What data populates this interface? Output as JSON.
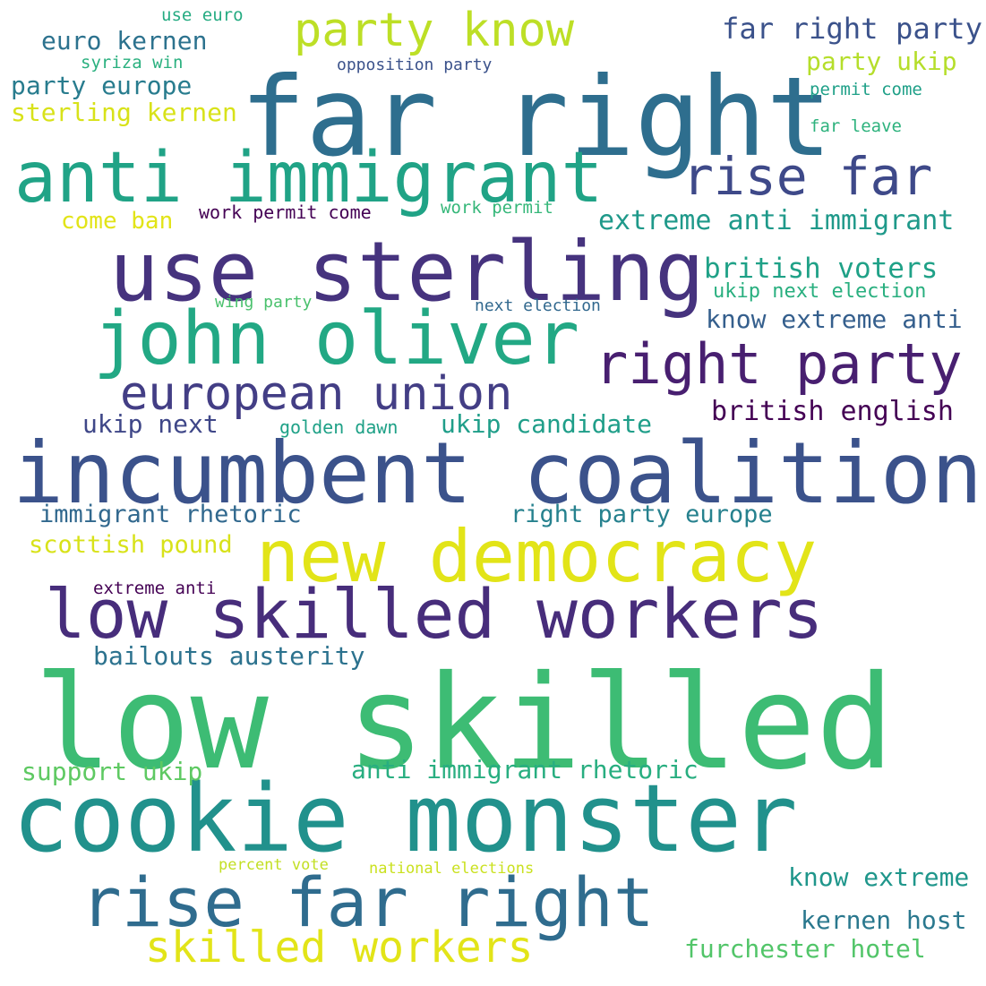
{
  "words": [
    {
      "text": "far right",
      "color": "#2e6e8e"
    },
    {
      "text": "low skilled",
      "color": "#3dbc74"
    },
    {
      "text": "cookie monster",
      "color": "#21918c"
    },
    {
      "text": "incumbent coalition",
      "color": "#3b528b"
    },
    {
      "text": "use sterling",
      "color": "#46337e"
    },
    {
      "text": "anti immigrant",
      "color": "#20a386"
    },
    {
      "text": "john oliver",
      "color": "#22a884"
    },
    {
      "text": "new democracy",
      "color": "#e2e418"
    },
    {
      "text": "low skilled workers",
      "color": "#472d7b"
    },
    {
      "text": "rise far right",
      "color": "#2f6c8e"
    },
    {
      "text": "european union",
      "color": "#433e85"
    },
    {
      "text": "right party",
      "color": "#481f70"
    },
    {
      "text": "rise far",
      "color": "#3e4989"
    },
    {
      "text": "party know",
      "color": "#bddf26"
    },
    {
      "text": "skilled workers",
      "color": "#e2e418"
    },
    {
      "text": "far right party",
      "color": "#3b528b"
    },
    {
      "text": "euro kernen",
      "color": "#2c728e"
    },
    {
      "text": "party ukip",
      "color": "#b5de2b"
    },
    {
      "text": "party europe",
      "color": "#287c8e"
    },
    {
      "text": "sterling kernen",
      "color": "#d8e219"
    },
    {
      "text": "extreme anti immigrant",
      "color": "#1f998a"
    },
    {
      "text": "british voters",
      "color": "#1fa187"
    },
    {
      "text": "know extreme anti",
      "color": "#355f8d"
    },
    {
      "text": "british english",
      "color": "#440154"
    },
    {
      "text": "ukip candidate",
      "color": "#1f9e89"
    },
    {
      "text": "ukip next",
      "color": "#3f4788"
    },
    {
      "text": "immigrant rhetoric",
      "color": "#31688e"
    },
    {
      "text": "right party europe",
      "color": "#26818e"
    },
    {
      "text": "scottish pound",
      "color": "#d8e219"
    },
    {
      "text": "bailouts austerity",
      "color": "#2c728e"
    },
    {
      "text": "anti immigrant rhetoric",
      "color": "#28ae80"
    },
    {
      "text": "support ukip",
      "color": "#5ec962"
    },
    {
      "text": "know extreme",
      "color": "#1f968b"
    },
    {
      "text": "kernen host",
      "color": "#2a788e"
    },
    {
      "text": "furchester hotel",
      "color": "#52c569"
    },
    {
      "text": "come ban",
      "color": "#e2e418"
    },
    {
      "text": "work permit come",
      "color": "#440154"
    },
    {
      "text": "work permit",
      "color": "#35b779"
    },
    {
      "text": "ukip next election",
      "color": "#29af7f"
    },
    {
      "text": "next election",
      "color": "#31688e"
    },
    {
      "text": "wing party",
      "color": "#4ac16d"
    },
    {
      "text": "golden dawn",
      "color": "#1fa187"
    },
    {
      "text": "extreme anti",
      "color": "#440154"
    },
    {
      "text": "percent vote",
      "color": "#c2df23"
    },
    {
      "text": "national elections",
      "color": "#cae11f"
    },
    {
      "text": "use euro",
      "color": "#25ab82"
    },
    {
      "text": "syriza win",
      "color": "#2ab07f"
    },
    {
      "text": "opposition party",
      "color": "#3b528b"
    },
    {
      "text": "permit come",
      "color": "#1fa088"
    },
    {
      "text": "far leave",
      "color": "#2db27d"
    }
  ]
}
